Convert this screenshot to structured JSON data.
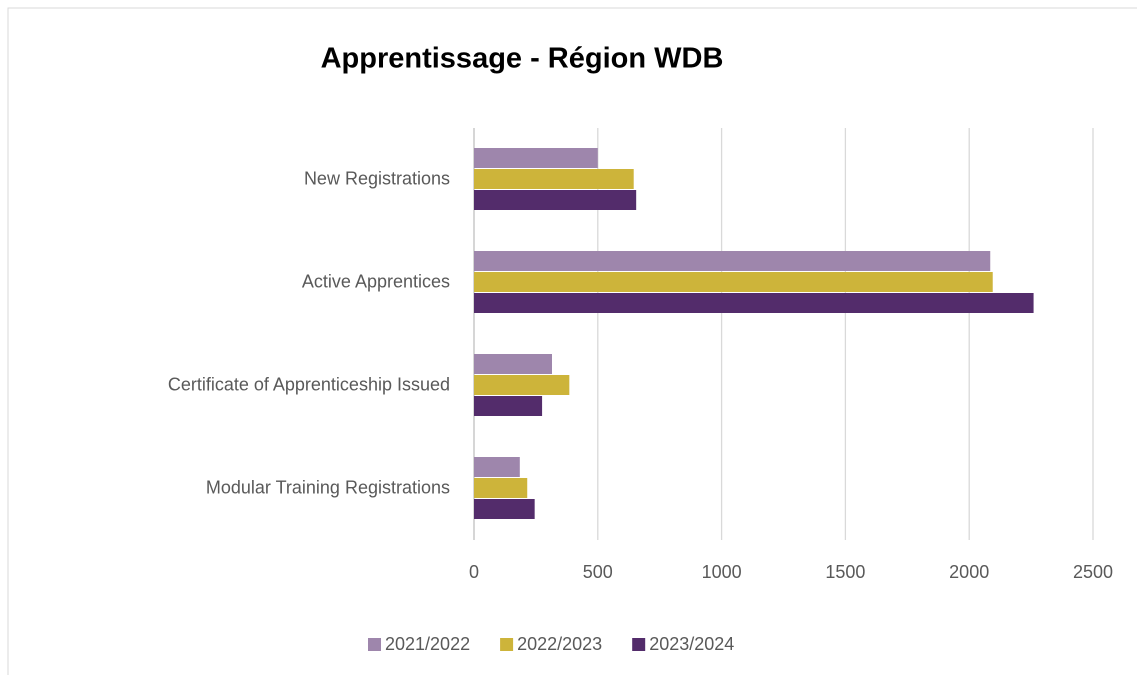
{
  "chart_data": {
    "type": "hbar",
    "title": "Apprentissage - Région WDB",
    "categories": [
      "New Registrations",
      "Active Apprentices",
      "Certificate of Apprenticeship Issued",
      "Modular Training Registrations"
    ],
    "series": [
      {
        "name": "2021/2022",
        "color": "#9e86ac",
        "values": [
          500,
          2085,
          315,
          185
        ]
      },
      {
        "name": "2022/2023",
        "color": "#cdb43a",
        "values": [
          645,
          2095,
          385,
          215
        ]
      },
      {
        "name": "2023/2024",
        "color": "#532c6b",
        "values": [
          655,
          2260,
          275,
          245
        ]
      }
    ],
    "xlim": [
      0,
      2500
    ],
    "xticks": [
      0,
      500,
      1000,
      1500,
      2000,
      2500
    ],
    "grid": true,
    "legend": "bottom"
  }
}
